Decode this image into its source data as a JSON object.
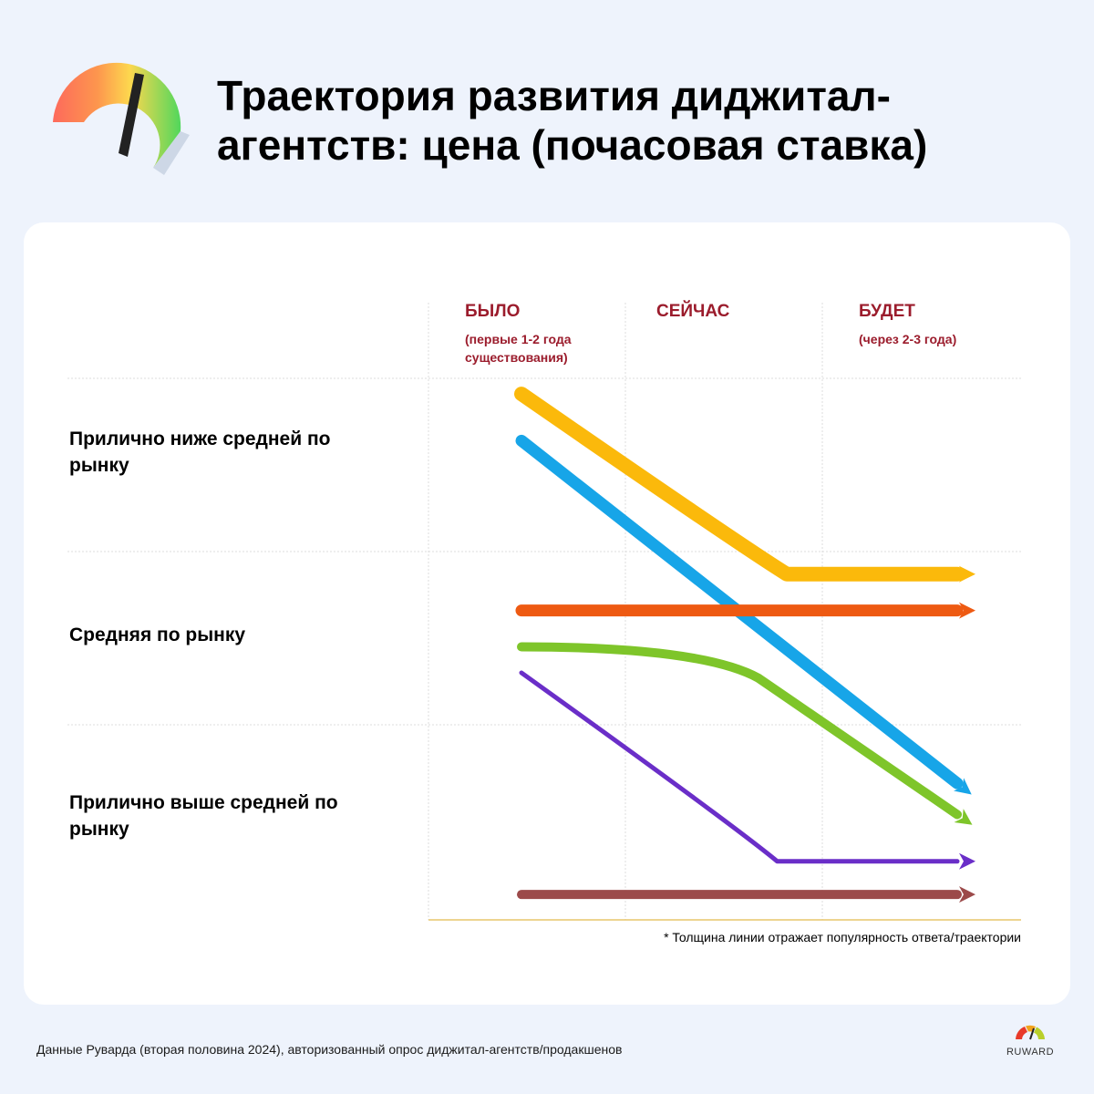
{
  "header": {
    "title": "Траектория развития диджитал-агентств: цена (почасовая ставка)",
    "logo_icon": "speedometer-gauge-icon"
  },
  "chart_data": {
    "type": "line",
    "columns": [
      {
        "label": "БЫЛО",
        "sublabel": "(первые 1-2 года существования)"
      },
      {
        "label": "СЕЙЧАС",
        "sublabel": ""
      },
      {
        "label": "БУДЕТ",
        "sublabel": "(через 2-3 года)"
      }
    ],
    "rows": [
      "Прилично ниже средней по рынку",
      "Средняя по рынку",
      "Прилично выше средней по рынку"
    ],
    "series": [
      {
        "color": "#fbb90b",
        "popularity_rank": 1,
        "points": [
          [
            0.0,
            0.09
          ],
          [
            1.15,
            0.96
          ],
          [
            1.4,
            1.13
          ],
          [
            2.3,
            1.13
          ]
        ]
      },
      {
        "color": "#17a5e8",
        "popularity_rank": 2,
        "points": [
          [
            0.0,
            0.36
          ],
          [
            2.3,
            2.3
          ]
        ]
      },
      {
        "color": "#ee5a12",
        "popularity_rank": 2,
        "points": [
          [
            0.0,
            1.34
          ],
          [
            2.3,
            1.34
          ]
        ]
      },
      {
        "color": "#7ec52a",
        "popularity_rank": 3,
        "points": [
          [
            0.0,
            1.55
          ],
          [
            0.95,
            1.55
          ],
          [
            1.25,
            1.73
          ],
          [
            2.3,
            2.46
          ]
        ]
      },
      {
        "color": "#6a2ec8",
        "popularity_rank": 4,
        "points": [
          [
            0.0,
            1.7
          ],
          [
            1.1,
            2.5
          ],
          [
            1.35,
            2.7
          ],
          [
            2.3,
            2.7
          ]
        ]
      },
      {
        "color": "#9c4a4a",
        "popularity_rank": 3,
        "points": [
          [
            0.0,
            2.87
          ],
          [
            2.3,
            2.87
          ]
        ]
      }
    ],
    "note": "* Толщина линии отражает популярность ответа/траектории"
  },
  "footer": {
    "source": "Данные Руварда (вторая половина 2024), авторизованный опрос диджитал-агентств/продакшенов",
    "brand": "RUWARD",
    "brand_icon": "ruward-gauge-icon"
  }
}
